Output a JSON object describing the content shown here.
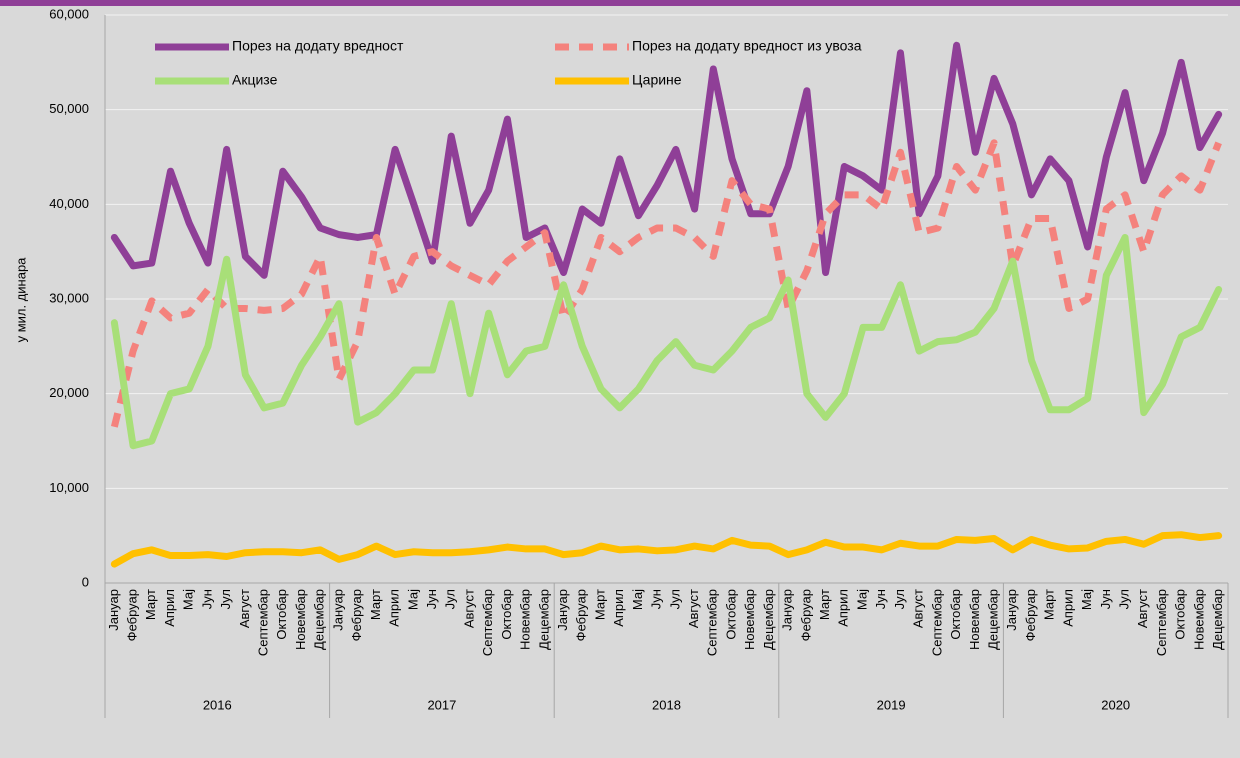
{
  "chart_data": {
    "type": "line",
    "ylabel": "у мил. динара",
    "categories": [
      "Јануар",
      "Фебруар",
      "Март",
      "Април",
      "Мај",
      "Јун",
      "Јул",
      "Август",
      "Септембар",
      "Октобар",
      "Новембар",
      "Децембар",
      "Јануар",
      "Фебруар",
      "Март",
      "Април",
      "Мај",
      "Јун",
      "Јул",
      "Август",
      "Септембар",
      "Октобар",
      "Новембар",
      "Децембар",
      "Јануар",
      "Фебруар",
      "Март",
      "Април",
      "Мај",
      "Јун",
      "Јул",
      "Август",
      "Септембар",
      "Октобар",
      "Новембар",
      "Децембар",
      "Јануар",
      "Фебруар",
      "Март",
      "Април",
      "Мај",
      "Јун",
      "Јул",
      "Август",
      "Септембар",
      "Октобар",
      "Новембар",
      "Децембар",
      "Јануар",
      "Фебруар",
      "Март",
      "Април",
      "Мај",
      "Јун",
      "Јул",
      "Август",
      "Септембар",
      "Октобар",
      "Новембар",
      "Децембар"
    ],
    "groups": [
      "2016",
      "2017",
      "2018",
      "2019",
      "2020"
    ],
    "series": [
      {
        "name": "Порез на додату вредност",
        "color": "#8f3f97",
        "values": [
          36500,
          33500,
          33800,
          43500,
          38000,
          33800,
          45800,
          34500,
          32500,
          43500,
          40800,
          37500,
          36800,
          36500,
          36800,
          45800,
          40000,
          34000,
          47200,
          38000,
          41500,
          49000,
          36500,
          37500,
          32800,
          39500,
          38000,
          44800,
          38800,
          42000,
          45800,
          39500,
          54300,
          44800,
          39000,
          39000,
          44000,
          52000,
          32800,
          44000,
          43000,
          41500,
          56000,
          39000,
          43000,
          56800,
          45500,
          53300,
          48500,
          41000,
          44800,
          42500,
          35500,
          45000,
          51800,
          42500,
          47500,
          55000,
          46000,
          49500
        ]
      },
      {
        "name": "Порез на додату вредност из увоза",
        "color": "#f4827d",
        "style": "dashed",
        "values": [
          16500,
          24500,
          29800,
          28000,
          28500,
          31000,
          29000,
          29000,
          28800,
          29000,
          30500,
          34500,
          21500,
          25500,
          36500,
          30500,
          34500,
          35000,
          33500,
          32500,
          31500,
          34000,
          35500,
          37000,
          28000,
          31000,
          36500,
          35000,
          36500,
          37500,
          37500,
          36500,
          34500,
          42500,
          40000,
          39500,
          29000,
          33000,
          39000,
          41000,
          41000,
          39500,
          45500,
          37000,
          37500,
          44000,
          41500,
          46500,
          33500,
          38500,
          38500,
          29000,
          30000,
          39500,
          41000,
          35000,
          41000,
          43000,
          41500,
          46500
        ]
      },
      {
        "name": "Акцизе",
        "color": "#a8df78",
        "values": [
          27500,
          14500,
          15000,
          20000,
          20500,
          25000,
          34200,
          22000,
          18500,
          19000,
          23000,
          26000,
          29500,
          17000,
          18000,
          20000,
          22500,
          22500,
          29500,
          20000,
          28500,
          22000,
          24500,
          25000,
          31500,
          25000,
          20500,
          18500,
          20500,
          23500,
          25500,
          23000,
          22500,
          24500,
          27000,
          28000,
          32000,
          20000,
          17500,
          20000,
          27000,
          27000,
          31500,
          24500,
          25500,
          25700,
          26500,
          29000,
          34000,
          23500,
          18300,
          18300,
          19500,
          32500,
          36500,
          18000,
          21000,
          26000,
          27000,
          31000
        ]
      },
      {
        "name": "Царине",
        "color": "#ffc000",
        "values": [
          2000,
          3100,
          3500,
          2900,
          2900,
          3000,
          2800,
          3200,
          3300,
          3300,
          3200,
          3500,
          2500,
          3000,
          3900,
          3000,
          3300,
          3200,
          3200,
          3300,
          3500,
          3800,
          3600,
          3600,
          3000,
          3200,
          3900,
          3500,
          3600,
          3400,
          3500,
          3900,
          3600,
          4500,
          4000,
          3900,
          3000,
          3500,
          4300,
          3800,
          3800,
          3500,
          4200,
          3900,
          3900,
          4600,
          4500,
          4700,
          3500,
          4600,
          4000,
          3600,
          3700,
          4400,
          4600,
          4100,
          5000,
          5100,
          4800,
          5000
        ]
      }
    ],
    "ylim": [
      0,
      60000
    ],
    "yticks": [
      0,
      {
        "value": 10000,
        "label": "10,000"
      },
      {
        "value": 20000,
        "label": "20,000"
      },
      {
        "value": 30000,
        "label": "30,000"
      },
      {
        "value": 40000,
        "label": "40,000"
      },
      {
        "value": 50000,
        "label": "50,000"
      },
      {
        "value": 60000,
        "label": "60,000"
      }
    ],
    "grid": true,
    "legend": "top"
  }
}
